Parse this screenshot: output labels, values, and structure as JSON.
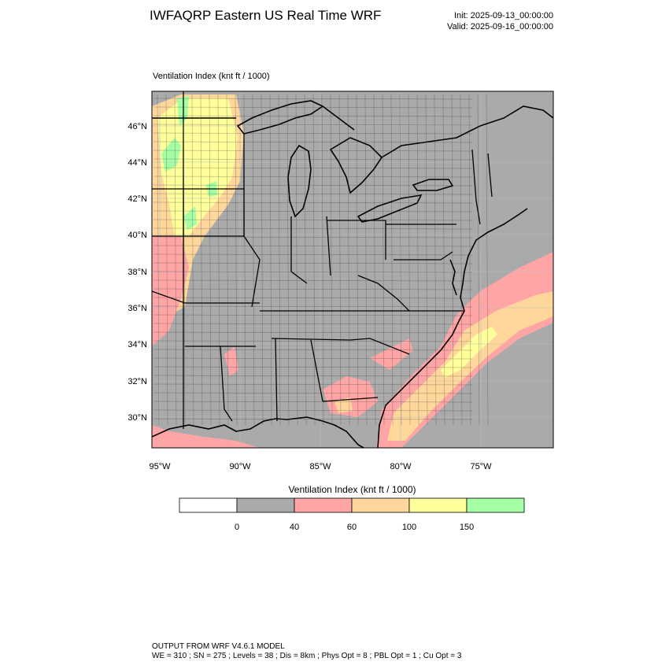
{
  "header": {
    "title": "IWFAQRP Eastern US Real Time WRF",
    "init": "Init: 2025-09-13_00:00:00",
    "valid": "Valid: 2025-09-16_00:00:00"
  },
  "map": {
    "field_label": "Ventilation Index   (knt ft / 1000)",
    "lat_labels": [
      "46°N",
      "44°N",
      "42°N",
      "40°N",
      "38°N",
      "36°N",
      "34°N",
      "32°N",
      "30°N"
    ],
    "lon_labels": [
      "95°W",
      "90°W",
      "85°W",
      "80°W",
      "75°W"
    ],
    "colors": {
      "land": "#aaaaaa",
      "ocean": "#aaaaaa",
      "boundary": "#000000",
      "low": "#ffa5a5",
      "mid": "#ffd79b",
      "high": "#ffff9b",
      "top": "#a5ffa5"
    }
  },
  "colorbar": {
    "title": "Ventilation Index  (knt ft / 1000)",
    "colors": [
      "#ffffff",
      "#aaaaaa",
      "#ffa5a5",
      "#ffd79b",
      "#ffff9b",
      "#a5ffa5"
    ],
    "labels": [
      "0",
      "40",
      "60",
      "100",
      "150"
    ]
  },
  "footer": {
    "line1": "OUTPUT FROM WRF V4.6.1 MODEL",
    "line2": "WE = 310 ; SN = 275 ; Levels = 38 ; Dis = 8km ; Phys Opt = 8 ; PBL Opt = 1 ; Cu Opt = 3"
  }
}
